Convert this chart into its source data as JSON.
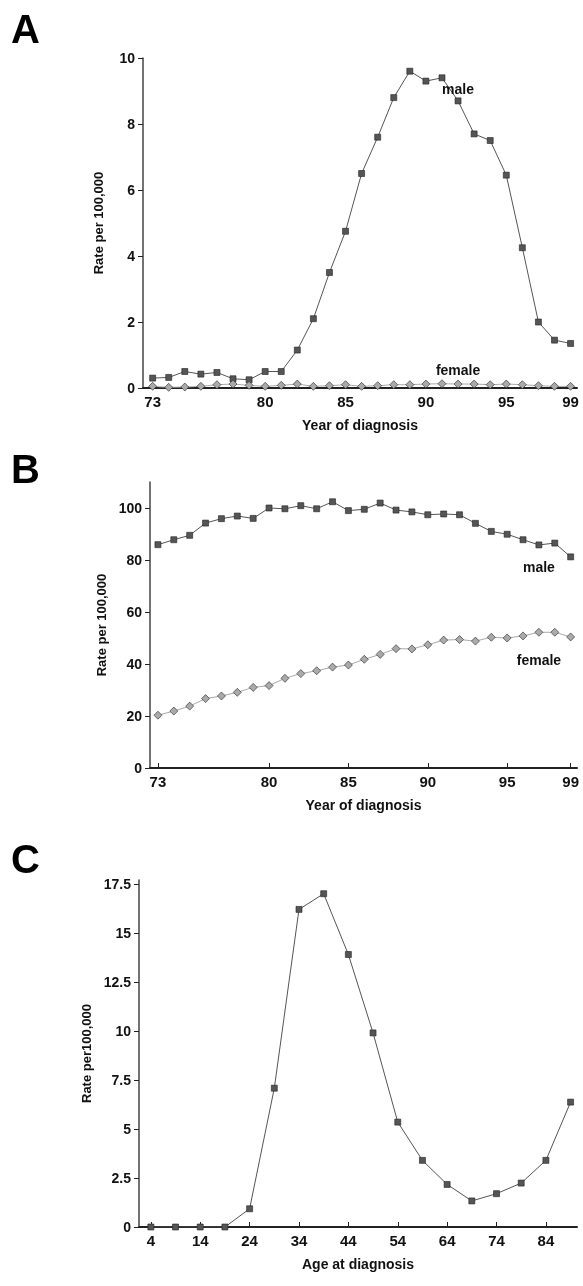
{
  "chart_data": [
    {
      "type": "line",
      "title": "A",
      "xlabel": "Year of diagnosis",
      "ylabel": "Rate per 100,000",
      "x": [
        73,
        74,
        75,
        76,
        77,
        78,
        79,
        80,
        81,
        82,
        83,
        84,
        85,
        86,
        87,
        88,
        89,
        90,
        91,
        92,
        93,
        94,
        95,
        96,
        97,
        98,
        99
      ],
      "series": [
        {
          "name": "male",
          "color": "#555555",
          "marker": "square",
          "values": [
            0.3,
            0.32,
            0.5,
            0.42,
            0.47,
            0.28,
            0.25,
            0.5,
            0.5,
            1.15,
            2.1,
            3.5,
            4.75,
            6.5,
            7.6,
            8.8,
            9.6,
            9.3,
            9.4,
            8.7,
            7.7,
            7.5,
            6.45,
            4.25,
            2.0,
            1.45,
            1.35
          ]
        },
        {
          "name": "female",
          "color": "#aaaaaa",
          "marker": "diamond",
          "values": [
            0.05,
            0.02,
            0.03,
            0.05,
            0.1,
            0.12,
            0.08,
            0.05,
            0.08,
            0.12,
            0.05,
            0.07,
            0.1,
            0.05,
            0.07,
            0.1,
            0.1,
            0.12,
            0.13,
            0.12,
            0.12,
            0.1,
            0.12,
            0.1,
            0.07,
            0.05,
            0.05
          ]
        }
      ],
      "xlim": [
        72.4,
        99.4
      ],
      "xticks": [
        73,
        80,
        85,
        90,
        95,
        99
      ],
      "ylim": [
        0,
        10
      ],
      "yticks": [
        0,
        2,
        4,
        6,
        8,
        10
      ],
      "grid": false,
      "legend": false
    },
    {
      "type": "line",
      "title": "B",
      "xlabel": "Year of diagnosis",
      "ylabel": "Rate per 100,000",
      "x": [
        73,
        74,
        75,
        76,
        77,
        78,
        79,
        80,
        81,
        82,
        83,
        84,
        85,
        86,
        87,
        88,
        89,
        90,
        91,
        92,
        93,
        94,
        95,
        96,
        97,
        98,
        99
      ],
      "series": [
        {
          "name": "male",
          "color": "#555555",
          "marker": "square",
          "values": [
            85.9,
            87.8,
            89.5,
            94.2,
            95.9,
            96.9,
            96,
            100,
            99.7,
            100.9,
            99.7,
            102.4,
            99,
            99.5,
            101.9,
            99.2,
            98.5,
            97.4,
            97.7,
            97.4,
            94.1,
            91,
            89.9,
            87.8,
            85.8,
            86.5,
            81.2
          ]
        },
        {
          "name": "female",
          "color": "#aaaaaa",
          "marker": "diamond",
          "values": [
            20.3,
            21.9,
            23.8,
            26.7,
            27.7,
            29.1,
            31,
            31.7,
            34.5,
            36.3,
            37.4,
            38.8,
            39.6,
            41.8,
            43.7,
            45.9,
            45.8,
            47.4,
            49.2,
            49.4,
            48.8,
            50.3,
            50,
            50.8,
            52.2,
            52.2,
            50.4
          ]
        }
      ],
      "xlim": [
        72.5,
        99.4
      ],
      "xticks": [
        73,
        80,
        85,
        90,
        95,
        99
      ],
      "ylim": [
        0,
        110
      ],
      "yticks": [
        0,
        20,
        40,
        60,
        80,
        100
      ],
      "grid": false,
      "legend": false
    },
    {
      "type": "line",
      "title": "C",
      "xlabel": "Age at diagnosis",
      "ylabel": "Rate per100,000",
      "x": [
        4,
        9,
        14,
        19,
        24,
        29,
        34,
        39,
        44,
        49,
        54,
        59,
        64,
        69,
        74,
        79,
        84,
        89
      ],
      "series": [
        {
          "color": "#555555",
          "marker": "square",
          "values": [
            0,
            0,
            0,
            0,
            0.93,
            7.08,
            16.2,
            17.0,
            13.9,
            9.9,
            5.35,
            3.4,
            2.17,
            1.33,
            1.7,
            2.24,
            3.4,
            6.37
          ]
        }
      ],
      "xlim": [
        1.6,
        90.3
      ],
      "xticks": [
        4,
        14,
        24,
        34,
        44,
        54,
        64,
        74,
        84
      ],
      "ylim": [
        0,
        17.7
      ],
      "yticks": [
        0,
        2.5,
        5,
        7.5,
        10,
        12.5,
        15,
        17.5
      ],
      "grid": false,
      "legend": false
    }
  ]
}
